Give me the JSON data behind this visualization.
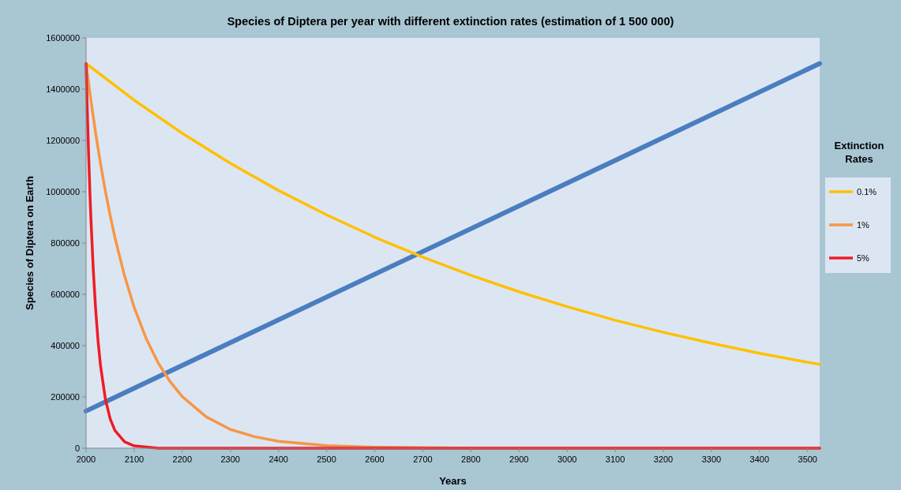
{
  "chart_data": {
    "type": "line",
    "title": "Species of Diptera per year with different extinction rates (estimation of 1 500 000)",
    "xlabel": "Years",
    "ylabel": "Species of Diptera on Earth",
    "legend_title": "Extinction Rates",
    "legend": "right",
    "grid": false,
    "marker": "none",
    "line_style": "solid",
    "xlim": [
      2000,
      3525
    ],
    "xticks": [
      2000,
      2100,
      2200,
      2300,
      2400,
      2500,
      2600,
      2700,
      2800,
      2900,
      3000,
      3100,
      3200,
      3300,
      3400,
      3500
    ],
    "ylim": [
      0,
      1600000
    ],
    "yticks": [
      0,
      200000,
      400000,
      600000,
      800000,
      1000000,
      1200000,
      1400000,
      1600000
    ],
    "series": [
      {
        "color": "#4a7ebf",
        "x": [
          2000,
          3525
        ],
        "values": [
          145000,
          1500000
        ]
      },
      {
        "name": "0.1%",
        "color": "#ffc000",
        "x": [
          2000,
          2100,
          2200,
          2300,
          2400,
          2500,
          2600,
          2700,
          2800,
          2900,
          3000,
          3100,
          3200,
          3300,
          3400,
          3500,
          3525
        ],
        "values": [
          1500000,
          1357000,
          1228000,
          1111000,
          1005000,
          910000,
          823000,
          745000,
          674000,
          610000,
          552000,
          499000,
          452000,
          409000,
          370000,
          335000,
          327000
        ]
      },
      {
        "name": "1%",
        "color": "#f79646",
        "x": [
          2000,
          2010,
          2020,
          2030,
          2040,
          2050,
          2060,
          2080,
          2100,
          2125,
          2150,
          2175,
          2200,
          2250,
          2300,
          2350,
          2400,
          2500,
          2600,
          2800,
          3525
        ],
        "values": [
          1500000,
          1357000,
          1227000,
          1110000,
          1004000,
          908000,
          821000,
          672000,
          549000,
          427000,
          332000,
          259000,
          201000,
          122000,
          73000,
          45000,
          27000,
          10000,
          4000,
          0,
          0
        ]
      },
      {
        "name": "5%",
        "color": "#ee1c25",
        "x": [
          2000,
          2002,
          2005,
          2008,
          2010,
          2015,
          2020,
          2025,
          2030,
          2040,
          2050,
          2060,
          2080,
          2100,
          2150,
          3525
        ],
        "values": [
          1500000,
          1350000,
          1161000,
          995000,
          898000,
          695000,
          538000,
          416000,
          322000,
          193000,
          115000,
          69000,
          25000,
          9000,
          0,
          0
        ]
      }
    ]
  }
}
